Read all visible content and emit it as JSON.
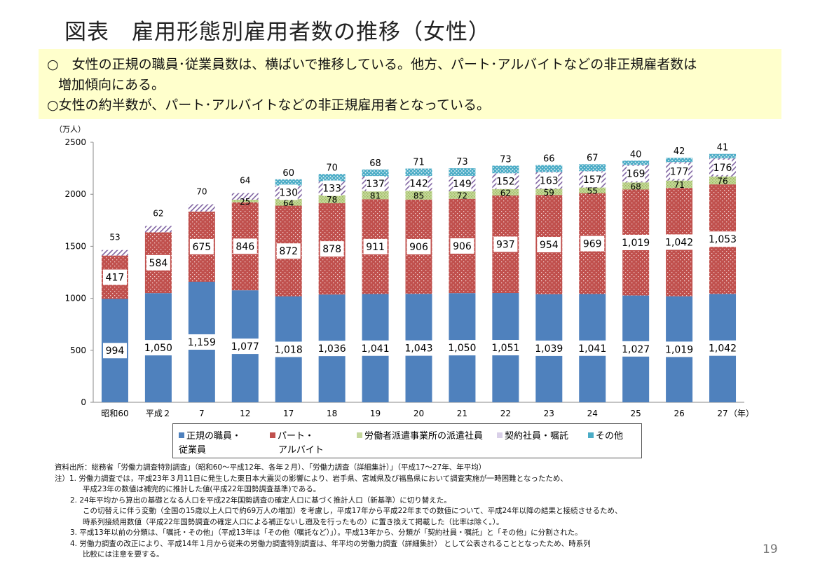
{
  "title": "図表　雇用形態別雇用者数の推移（女性）",
  "summary": [
    "○　女性の正規の職員･従業員数は、横ばいで推移している。他方、パート･アルバイトなどの非正規雇者数は",
    "増加傾向にある。",
    "○女性の約半数が、パート･アルバイトなどの非正規雇用者となっている。"
  ],
  "chart_data": {
    "type": "bar",
    "stacked": true,
    "ylabel": "（万人）",
    "xlabel": "（年）",
    "ylim": [
      0,
      2500
    ],
    "yticks": [
      "0",
      "500",
      "1000",
      "1500",
      "2000",
      "2500"
    ],
    "grid": false,
    "legend_position": "bottom",
    "categories": [
      "昭和60",
      "平成２",
      "7",
      "12",
      "17",
      "18",
      "19",
      "20",
      "21",
      "22",
      "23",
      "24",
      "25",
      "26",
      "27"
    ],
    "series": [
      {
        "name": "正規の職員・従業員",
        "color": "#4f81bd",
        "values": [
          994,
          1050,
          1159,
          1077,
          1018,
          1036,
          1041,
          1043,
          1050,
          1051,
          1039,
          1041,
          1027,
          1019,
          1042
        ],
        "labels": [
          "994",
          "1,050",
          "1,159",
          "1,077",
          "1,018",
          "1,036",
          "1,041",
          "1,043",
          "1,050",
          "1,051",
          "1,039",
          "1,041",
          "1,027",
          "1,019",
          "1,042"
        ]
      },
      {
        "name": "パート・アルバイト",
        "color": "#c0504d",
        "values": [
          417,
          584,
          675,
          846,
          872,
          878,
          911,
          906,
          906,
          937,
          954,
          969,
          1019,
          1042,
          1053
        ],
        "labels": [
          "417",
          "584",
          "675",
          "846",
          "872",
          "878",
          "911",
          "906",
          "906",
          "937",
          "954",
          "969",
          "1,019",
          "1,042",
          "1,053"
        ]
      },
      {
        "name": "労働者派遣事業所の派遣社員",
        "color": "#9bbb59",
        "values": [
          null,
          null,
          null,
          25,
          64,
          78,
          81,
          85,
          72,
          62,
          59,
          55,
          68,
          71,
          76
        ]
      },
      {
        "name": "契約社員・嘱託",
        "color": "#8064a2",
        "values": [
          53,
          62,
          70,
          64,
          130,
          133,
          137,
          142,
          149,
          152,
          163,
          157,
          169,
          177,
          176
        ]
      },
      {
        "name": "その他",
        "color": "#4bacc6",
        "values": [
          null,
          null,
          null,
          null,
          60,
          70,
          68,
          71,
          73,
          73,
          66,
          67,
          40,
          42,
          41
        ]
      }
    ]
  },
  "legend": {
    "regular": [
      "正規の職員・",
      "従業員"
    ],
    "part": [
      "パート・",
      "アルバイト"
    ],
    "dispatch": "労働者派遣事業所の派遣社員",
    "contract": "契約社員・嘱託",
    "other": "その他"
  },
  "notes": [
    "資料出所：総務省「労働力調査特別調査」（昭和60～平成12年、各年２月）、「労働力調査（詳細集計）」（平成17～27年、年平均）",
    "注）1. 労働力調査では，平成23年３月11日に発生した東日本大震災の影響により、岩手県、宮城県及び福島県において調査実施が一時困難となったため、",
    "平成23年の数値は補完的に推計した値(平成22年国勢調査基準)である。",
    "2. 24年平均から算出の基礎となる人口を平成22年国勢調査の確定人口に基づく推計人口（新基準）に切り替えた。",
    "この切替えに伴う変動（全国の15歳以上人口で約69万人の増加）を考慮し，平成17年から平成22年までの数値について、平成24年以降の結果と接続させるため、",
    "時系列接続用数値（平成22年国勢調査の確定人口による補正ないし遡及を行ったもの）に置き換えて掲載した（比率は除く。）。",
    "3. 平成13年以前の分類は、「嘱託・その他」（平成13年は「その他（嘱託など）」）。平成13年から、分類が「契約社員・嘱託」と「その他」に分割された。",
    "4. 労働力調査の改正により、平成14年１月から従来の労働力調査特別調査は、年平均の労働力調査（詳細集計） として公表されることとなったため、時系列",
    "比較には注意を要する。"
  ],
  "page_number": "19"
}
